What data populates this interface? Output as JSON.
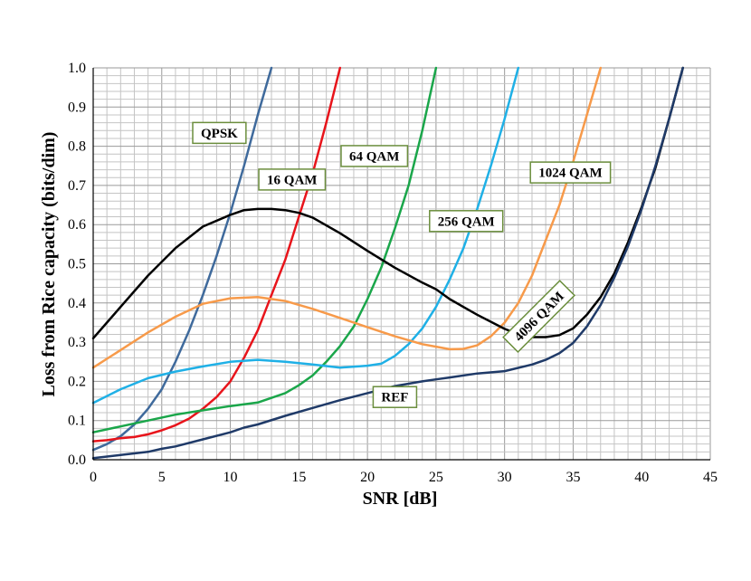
{
  "chart_data": {
    "type": "line",
    "xlabel": "SNR [dB]",
    "ylabel": "Loss from Rice capacity (bits/dim)",
    "xlim": [
      0,
      45
    ],
    "ylim": [
      0,
      1.0
    ],
    "x_ticks": [
      "0",
      "5",
      "10",
      "15",
      "20",
      "25",
      "30",
      "35",
      "40",
      "45"
    ],
    "y_ticks": [
      "0.0",
      "0.1",
      "0.2",
      "0.3",
      "0.4",
      "0.5",
      "0.6",
      "0.7",
      "0.8",
      "0.9",
      "1.0"
    ],
    "grid": true,
    "series": [
      {
        "name": "QPSK",
        "color": "#3f6a9c",
        "x": [
          0,
          1,
          2,
          3,
          4,
          5,
          6,
          7,
          8,
          9,
          10,
          11,
          12,
          13
        ],
        "y": [
          0.025,
          0.04,
          0.06,
          0.09,
          0.13,
          0.18,
          0.25,
          0.33,
          0.42,
          0.52,
          0.63,
          0.75,
          0.88,
          1.0
        ]
      },
      {
        "name": "16 QAM",
        "color": "#e8141b",
        "x": [
          0,
          1,
          2,
          3,
          4,
          5,
          6,
          7,
          8,
          9,
          10,
          11,
          12,
          13,
          14,
          15,
          16,
          17,
          18
        ],
        "y": [
          0.047,
          0.05,
          0.055,
          0.058,
          0.065,
          0.075,
          0.088,
          0.105,
          0.13,
          0.16,
          0.2,
          0.26,
          0.33,
          0.42,
          0.51,
          0.62,
          0.73,
          0.86,
          1.0
        ]
      },
      {
        "name": "64 QAM",
        "color": "#1aa64a",
        "x": [
          0,
          2,
          4,
          6,
          8,
          10,
          12,
          14,
          15,
          16,
          17,
          18,
          19,
          20,
          21,
          22,
          23,
          24,
          25
        ],
        "y": [
          0.07,
          0.085,
          0.1,
          0.115,
          0.126,
          0.137,
          0.146,
          0.17,
          0.19,
          0.215,
          0.25,
          0.29,
          0.34,
          0.41,
          0.49,
          0.59,
          0.7,
          0.84,
          1.0
        ]
      },
      {
        "name": "256 QAM",
        "color": "#1fb0e6",
        "x": [
          0,
          2,
          4,
          6,
          8,
          10,
          12,
          14,
          16,
          18,
          20,
          21,
          22,
          23,
          24,
          25,
          26,
          27,
          28,
          29,
          30,
          31
        ],
        "y": [
          0.145,
          0.18,
          0.208,
          0.225,
          0.238,
          0.25,
          0.255,
          0.25,
          0.243,
          0.235,
          0.24,
          0.245,
          0.265,
          0.295,
          0.335,
          0.39,
          0.46,
          0.54,
          0.64,
          0.75,
          0.87,
          1.0
        ]
      },
      {
        "name": "1024 QAM",
        "color": "#f79a4a",
        "x": [
          0,
          2,
          4,
          6,
          8,
          10,
          12,
          14,
          16,
          18,
          20,
          22,
          24,
          26,
          27,
          28,
          29,
          30,
          31,
          32,
          33,
          34,
          35,
          36,
          37
        ],
        "y": [
          0.235,
          0.28,
          0.325,
          0.365,
          0.398,
          0.412,
          0.415,
          0.405,
          0.385,
          0.362,
          0.338,
          0.315,
          0.295,
          0.282,
          0.283,
          0.292,
          0.315,
          0.35,
          0.4,
          0.47,
          0.56,
          0.65,
          0.76,
          0.88,
          1.0
        ]
      },
      {
        "name": "4096 QAM",
        "color": "#000000",
        "x": [
          0,
          2,
          4,
          6,
          8,
          10,
          11,
          12,
          13,
          14,
          15,
          16,
          18,
          20,
          22,
          24,
          25,
          26,
          28,
          30,
          31,
          32,
          33,
          34,
          35,
          36,
          37,
          38,
          39,
          40,
          41,
          42,
          43
        ],
        "y": [
          0.31,
          0.39,
          0.47,
          0.54,
          0.595,
          0.625,
          0.637,
          0.64,
          0.64,
          0.637,
          0.63,
          0.618,
          0.578,
          0.533,
          0.49,
          0.452,
          0.435,
          0.41,
          0.37,
          0.334,
          0.32,
          0.313,
          0.313,
          0.318,
          0.335,
          0.37,
          0.415,
          0.475,
          0.555,
          0.645,
          0.745,
          0.87,
          1.0
        ]
      },
      {
        "name": "REF",
        "color": "#1f3a68",
        "x": [
          0,
          2,
          4,
          5,
          6,
          8,
          10,
          11,
          12,
          14,
          16,
          18,
          20,
          22,
          24,
          25,
          26,
          28,
          30,
          32,
          33,
          34,
          35,
          36,
          37,
          38,
          39,
          40,
          41,
          42,
          43
        ],
        "y": [
          0.004,
          0.012,
          0.02,
          0.028,
          0.034,
          0.052,
          0.07,
          0.082,
          0.09,
          0.112,
          0.132,
          0.152,
          0.17,
          0.188,
          0.2,
          0.205,
          0.21,
          0.22,
          0.226,
          0.243,
          0.255,
          0.272,
          0.298,
          0.34,
          0.395,
          0.465,
          0.545,
          0.64,
          0.75,
          0.87,
          1.0
        ]
      }
    ],
    "annotations": [
      {
        "text": "QPSK",
        "x": 9.2,
        "y": 0.834,
        "rotate": 0
      },
      {
        "text": "16 QAM",
        "x": 14.5,
        "y": 0.715,
        "rotate": 0
      },
      {
        "text": "64 QAM",
        "x": 20.5,
        "y": 0.775,
        "rotate": 0
      },
      {
        "text": "256 QAM",
        "x": 27.2,
        "y": 0.609,
        "rotate": 0
      },
      {
        "text": "1024 QAM",
        "x": 34.8,
        "y": 0.733,
        "rotate": 0
      },
      {
        "text": "4096 QAM",
        "x": 32.5,
        "y": 0.366,
        "rotate": -45
      },
      {
        "text": "REF",
        "x": 22.0,
        "y": 0.16,
        "rotate": 0
      }
    ]
  }
}
